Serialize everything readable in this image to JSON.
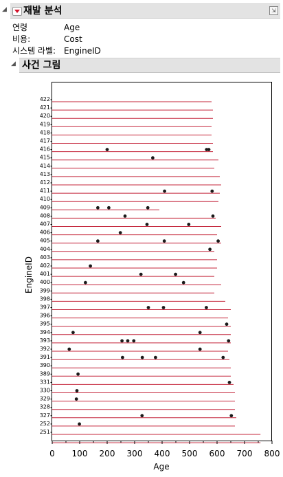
{
  "report": {
    "title": "재발 분석",
    "properties": [
      {
        "label": "연령",
        "value": "Age"
      },
      {
        "label": "비용:",
        "value": "Cost"
      },
      {
        "label": "시스템 라벨:",
        "value": "EngineID"
      }
    ]
  },
  "event_plot": {
    "title": "사건 그림"
  },
  "chart_data": {
    "type": "event_plot",
    "xlabel": "Age",
    "ylabel": "EngineID",
    "xlim": [
      0,
      800
    ],
    "xticks": [
      0,
      100,
      200,
      300,
      400,
      500,
      600,
      700,
      800
    ],
    "colors": {
      "line": "#c4243a",
      "marker": "#1a1a1a"
    },
    "systems": [
      {
        "id": "422",
        "end": 580,
        "events": []
      },
      {
        "id": "421",
        "end": 585,
        "events": []
      },
      {
        "id": "420",
        "end": 585,
        "events": []
      },
      {
        "id": "419",
        "end": 580,
        "events": []
      },
      {
        "id": "418",
        "end": 580,
        "events": []
      },
      {
        "id": "417",
        "end": 585,
        "events": []
      },
      {
        "id": "416",
        "end": 585,
        "events": [
          200,
          562,
          570
        ]
      },
      {
        "id": "415",
        "end": 605,
        "events": [
          366
        ]
      },
      {
        "id": "414",
        "end": 590,
        "events": []
      },
      {
        "id": "413",
        "end": 610,
        "events": []
      },
      {
        "id": "412",
        "end": 615,
        "events": []
      },
      {
        "id": "411",
        "end": 610,
        "events": [
          409,
          582
        ]
      },
      {
        "id": "410",
        "end": 605,
        "events": []
      },
      {
        "id": "409",
        "end": 390,
        "events": [
          166,
          206,
          348
        ]
      },
      {
        "id": "408",
        "end": 595,
        "events": [
          265,
          585
        ]
      },
      {
        "id": "407",
        "end": 615,
        "events": [
          345,
          497
        ]
      },
      {
        "id": "406",
        "end": 600,
        "events": [
          248
        ]
      },
      {
        "id": "405",
        "end": 615,
        "events": [
          166,
          408,
          604
        ]
      },
      {
        "id": "404",
        "end": 590,
        "events": [
          574
        ]
      },
      {
        "id": "403",
        "end": 600,
        "events": []
      },
      {
        "id": "402",
        "end": 600,
        "events": [
          139
        ]
      },
      {
        "id": "401",
        "end": 590,
        "events": [
          323,
          449
        ]
      },
      {
        "id": "400",
        "end": 615,
        "events": [
          121,
          478
        ]
      },
      {
        "id": "399",
        "end": 590,
        "events": []
      },
      {
        "id": "398",
        "end": 630,
        "events": []
      },
      {
        "id": "397",
        "end": 650,
        "events": [
          350,
          405,
          561
        ]
      },
      {
        "id": "396",
        "end": 640,
        "events": []
      },
      {
        "id": "395",
        "end": 650,
        "events": [
          635
        ]
      },
      {
        "id": "394",
        "end": 650,
        "events": [
          76,
          538
        ]
      },
      {
        "id": "393",
        "end": 650,
        "events": [
          254,
          275,
          297,
          642
        ]
      },
      {
        "id": "392",
        "end": 640,
        "events": [
          62,
          538
        ]
      },
      {
        "id": "391",
        "end": 645,
        "events": [
          256,
          328,
          376,
          622
        ]
      },
      {
        "id": "390",
        "end": 650,
        "events": []
      },
      {
        "id": "389",
        "end": 650,
        "events": [
          94
        ]
      },
      {
        "id": "331",
        "end": 660,
        "events": [
          645
        ]
      },
      {
        "id": "330",
        "end": 665,
        "events": [
          90
        ]
      },
      {
        "id": "329",
        "end": 665,
        "events": [
          88
        ]
      },
      {
        "id": "328",
        "end": 665,
        "events": []
      },
      {
        "id": "327",
        "end": 670,
        "events": [
          327,
          652
        ]
      },
      {
        "id": "252",
        "end": 665,
        "events": [
          99
        ]
      },
      {
        "id": "251",
        "end": 758,
        "events": []
      },
      {
        "id": "",
        "end": 758,
        "events": []
      }
    ]
  }
}
